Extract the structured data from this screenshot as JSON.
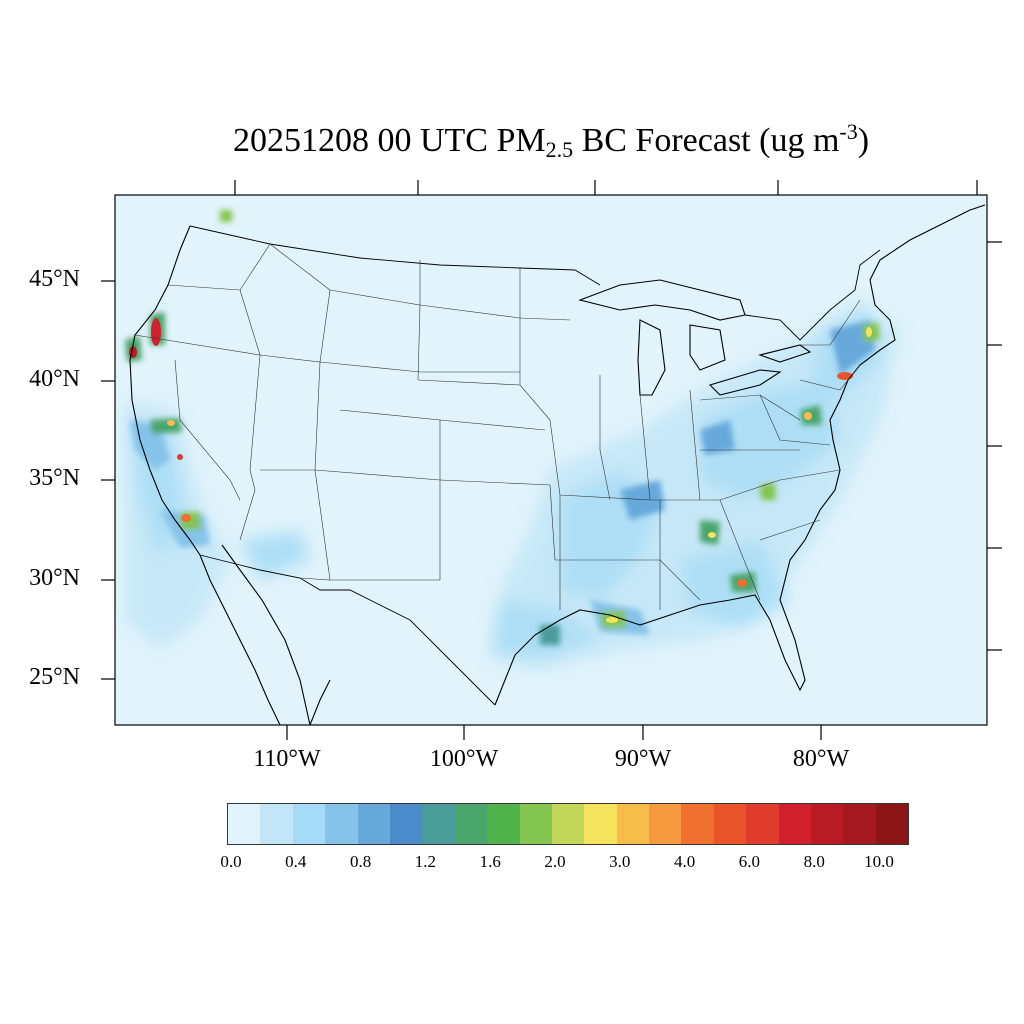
{
  "title": {
    "prefix": "20251208 00 UTC PM",
    "subscript": "2.5",
    "middle": " BC Forecast (ug m",
    "superscript": "-3",
    "suffix": ")"
  },
  "lat_labels": [
    "45°N",
    "40°N",
    "35°N",
    "30°N",
    "25°N"
  ],
  "lon_labels": [
    "110°W",
    "100°W",
    "90°W",
    "80°W"
  ],
  "colorbar": {
    "colors": [
      "#e1f3fb",
      "#c2e6f7",
      "#a5dbf6",
      "#86c3ea",
      "#68a9dc",
      "#4b8ccd",
      "#4a9c9a",
      "#4aa56c",
      "#4db34a",
      "#83c550",
      "#c2d75a",
      "#f6e45e",
      "#f7bc4a",
      "#f59a3e",
      "#f07030",
      "#e9542b",
      "#e03c2c",
      "#d11f2b",
      "#b81b26",
      "#a51a20",
      "#8c1617"
    ],
    "tick_labels": [
      "0.0",
      "0.4",
      "0.8",
      "1.2",
      "1.6",
      "2.0",
      "3.0",
      "4.0",
      "6.0",
      "8.0",
      "10.0"
    ]
  }
}
